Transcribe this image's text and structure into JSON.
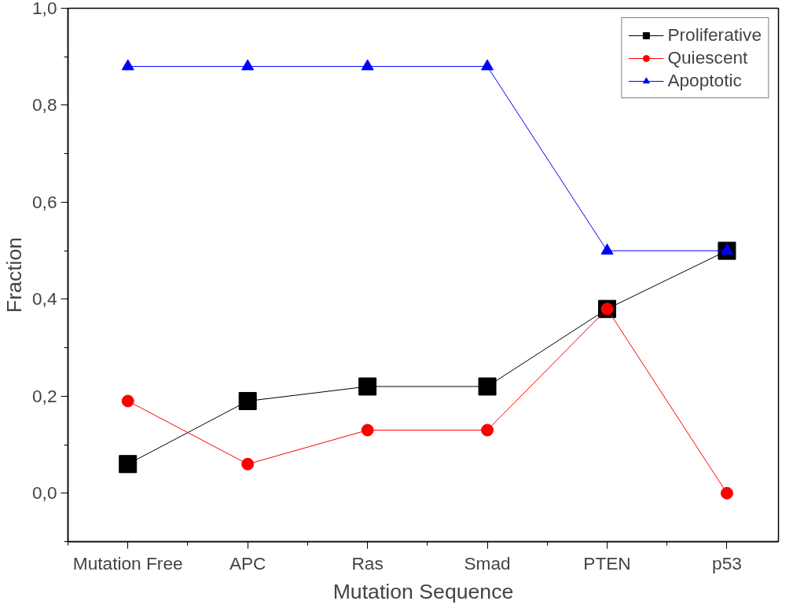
{
  "chart_data": {
    "type": "line",
    "xlabel": "Mutation Sequence",
    "ylabel": "Fraction",
    "categories": [
      "Mutation Free",
      "APC",
      "Ras",
      "Smad",
      "PTEN",
      "p53"
    ],
    "series": [
      {
        "name": "Proliferative",
        "color": "#000000",
        "marker": "square",
        "values": [
          0.06,
          0.19,
          0.22,
          0.22,
          0.38,
          0.5
        ]
      },
      {
        "name": "Quiescent",
        "color": "#ff0000",
        "marker": "circle",
        "values": [
          0.19,
          0.06,
          0.13,
          0.13,
          0.38,
          0.0
        ]
      },
      {
        "name": "Apoptotic",
        "color": "#0000ff",
        "marker": "triangle",
        "values": [
          0.88,
          0.88,
          0.88,
          0.88,
          0.5,
          0.5
        ]
      }
    ],
    "ylim": [
      -0.1,
      1.0
    ],
    "yticks": [
      {
        "value": 0,
        "label": "0,0"
      },
      {
        "value": 0.2,
        "label": "0,2"
      },
      {
        "value": 0.4,
        "label": "0,4"
      },
      {
        "value": 0.6,
        "label": "0,6"
      },
      {
        "value": 0.8,
        "label": "0,8"
      },
      {
        "value": 1.0,
        "label": "1,0"
      }
    ],
    "grid": false,
    "legend": "top right",
    "line_style": "solid"
  }
}
